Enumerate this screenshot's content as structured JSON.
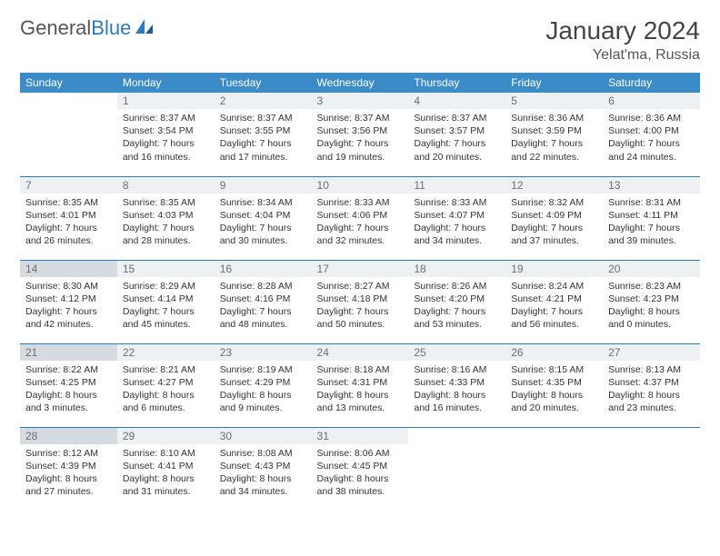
{
  "logo": {
    "word1": "General",
    "word2": "Blue"
  },
  "title": "January 2024",
  "location": "Yelat'ma, Russia",
  "colors": {
    "header_bg": "#3b8bc9",
    "header_text": "#ffffff",
    "daynum_bg": "#eef1f3",
    "daynum_hl_bg": "#d5dbe0",
    "daynum_text": "#6a6f73",
    "row_border": "#2b7bbf",
    "logo_accent": "#2b7bbf"
  },
  "day_headers": [
    "Sunday",
    "Monday",
    "Tuesday",
    "Wednesday",
    "Thursday",
    "Friday",
    "Saturday"
  ],
  "weeks": [
    [
      {
        "n": "",
        "sunrise": "",
        "sunset": "",
        "daylight": ""
      },
      {
        "n": "1",
        "sunrise": "Sunrise: 8:37 AM",
        "sunset": "Sunset: 3:54 PM",
        "daylight": "Daylight: 7 hours and 16 minutes."
      },
      {
        "n": "2",
        "sunrise": "Sunrise: 8:37 AM",
        "sunset": "Sunset: 3:55 PM",
        "daylight": "Daylight: 7 hours and 17 minutes."
      },
      {
        "n": "3",
        "sunrise": "Sunrise: 8:37 AM",
        "sunset": "Sunset: 3:56 PM",
        "daylight": "Daylight: 7 hours and 19 minutes."
      },
      {
        "n": "4",
        "sunrise": "Sunrise: 8:37 AM",
        "sunset": "Sunset: 3:57 PM",
        "daylight": "Daylight: 7 hours and 20 minutes."
      },
      {
        "n": "5",
        "sunrise": "Sunrise: 8:36 AM",
        "sunset": "Sunset: 3:59 PM",
        "daylight": "Daylight: 7 hours and 22 minutes."
      },
      {
        "n": "6",
        "sunrise": "Sunrise: 8:36 AM",
        "sunset": "Sunset: 4:00 PM",
        "daylight": "Daylight: 7 hours and 24 minutes."
      }
    ],
    [
      {
        "n": "7",
        "sunrise": "Sunrise: 8:35 AM",
        "sunset": "Sunset: 4:01 PM",
        "daylight": "Daylight: 7 hours and 26 minutes."
      },
      {
        "n": "8",
        "sunrise": "Sunrise: 8:35 AM",
        "sunset": "Sunset: 4:03 PM",
        "daylight": "Daylight: 7 hours and 28 minutes."
      },
      {
        "n": "9",
        "sunrise": "Sunrise: 8:34 AM",
        "sunset": "Sunset: 4:04 PM",
        "daylight": "Daylight: 7 hours and 30 minutes."
      },
      {
        "n": "10",
        "sunrise": "Sunrise: 8:33 AM",
        "sunset": "Sunset: 4:06 PM",
        "daylight": "Daylight: 7 hours and 32 minutes."
      },
      {
        "n": "11",
        "sunrise": "Sunrise: 8:33 AM",
        "sunset": "Sunset: 4:07 PM",
        "daylight": "Daylight: 7 hours and 34 minutes."
      },
      {
        "n": "12",
        "sunrise": "Sunrise: 8:32 AM",
        "sunset": "Sunset: 4:09 PM",
        "daylight": "Daylight: 7 hours and 37 minutes."
      },
      {
        "n": "13",
        "sunrise": "Sunrise: 8:31 AM",
        "sunset": "Sunset: 4:11 PM",
        "daylight": "Daylight: 7 hours and 39 minutes."
      }
    ],
    [
      {
        "n": "14",
        "hl": true,
        "sunrise": "Sunrise: 8:30 AM",
        "sunset": "Sunset: 4:12 PM",
        "daylight": "Daylight: 7 hours and 42 minutes."
      },
      {
        "n": "15",
        "sunrise": "Sunrise: 8:29 AM",
        "sunset": "Sunset: 4:14 PM",
        "daylight": "Daylight: 7 hours and 45 minutes."
      },
      {
        "n": "16",
        "sunrise": "Sunrise: 8:28 AM",
        "sunset": "Sunset: 4:16 PM",
        "daylight": "Daylight: 7 hours and 48 minutes."
      },
      {
        "n": "17",
        "sunrise": "Sunrise: 8:27 AM",
        "sunset": "Sunset: 4:18 PM",
        "daylight": "Daylight: 7 hours and 50 minutes."
      },
      {
        "n": "18",
        "sunrise": "Sunrise: 8:26 AM",
        "sunset": "Sunset: 4:20 PM",
        "daylight": "Daylight: 7 hours and 53 minutes."
      },
      {
        "n": "19",
        "sunrise": "Sunrise: 8:24 AM",
        "sunset": "Sunset: 4:21 PM",
        "daylight": "Daylight: 7 hours and 56 minutes."
      },
      {
        "n": "20",
        "sunrise": "Sunrise: 8:23 AM",
        "sunset": "Sunset: 4:23 PM",
        "daylight": "Daylight: 8 hours and 0 minutes."
      }
    ],
    [
      {
        "n": "21",
        "hl": true,
        "sunrise": "Sunrise: 8:22 AM",
        "sunset": "Sunset: 4:25 PM",
        "daylight": "Daylight: 8 hours and 3 minutes."
      },
      {
        "n": "22",
        "sunrise": "Sunrise: 8:21 AM",
        "sunset": "Sunset: 4:27 PM",
        "daylight": "Daylight: 8 hours and 6 minutes."
      },
      {
        "n": "23",
        "sunrise": "Sunrise: 8:19 AM",
        "sunset": "Sunset: 4:29 PM",
        "daylight": "Daylight: 8 hours and 9 minutes."
      },
      {
        "n": "24",
        "sunrise": "Sunrise: 8:18 AM",
        "sunset": "Sunset: 4:31 PM",
        "daylight": "Daylight: 8 hours and 13 minutes."
      },
      {
        "n": "25",
        "sunrise": "Sunrise: 8:16 AM",
        "sunset": "Sunset: 4:33 PM",
        "daylight": "Daylight: 8 hours and 16 minutes."
      },
      {
        "n": "26",
        "sunrise": "Sunrise: 8:15 AM",
        "sunset": "Sunset: 4:35 PM",
        "daylight": "Daylight: 8 hours and 20 minutes."
      },
      {
        "n": "27",
        "sunrise": "Sunrise: 8:13 AM",
        "sunset": "Sunset: 4:37 PM",
        "daylight": "Daylight: 8 hours and 23 minutes."
      }
    ],
    [
      {
        "n": "28",
        "hl": true,
        "sunrise": "Sunrise: 8:12 AM",
        "sunset": "Sunset: 4:39 PM",
        "daylight": "Daylight: 8 hours and 27 minutes."
      },
      {
        "n": "29",
        "sunrise": "Sunrise: 8:10 AM",
        "sunset": "Sunset: 4:41 PM",
        "daylight": "Daylight: 8 hours and 31 minutes."
      },
      {
        "n": "30",
        "sunrise": "Sunrise: 8:08 AM",
        "sunset": "Sunset: 4:43 PM",
        "daylight": "Daylight: 8 hours and 34 minutes."
      },
      {
        "n": "31",
        "sunrise": "Sunrise: 8:06 AM",
        "sunset": "Sunset: 4:45 PM",
        "daylight": "Daylight: 8 hours and 38 minutes."
      },
      {
        "n": "",
        "sunrise": "",
        "sunset": "",
        "daylight": ""
      },
      {
        "n": "",
        "sunrise": "",
        "sunset": "",
        "daylight": ""
      },
      {
        "n": "",
        "sunrise": "",
        "sunset": "",
        "daylight": ""
      }
    ]
  ]
}
